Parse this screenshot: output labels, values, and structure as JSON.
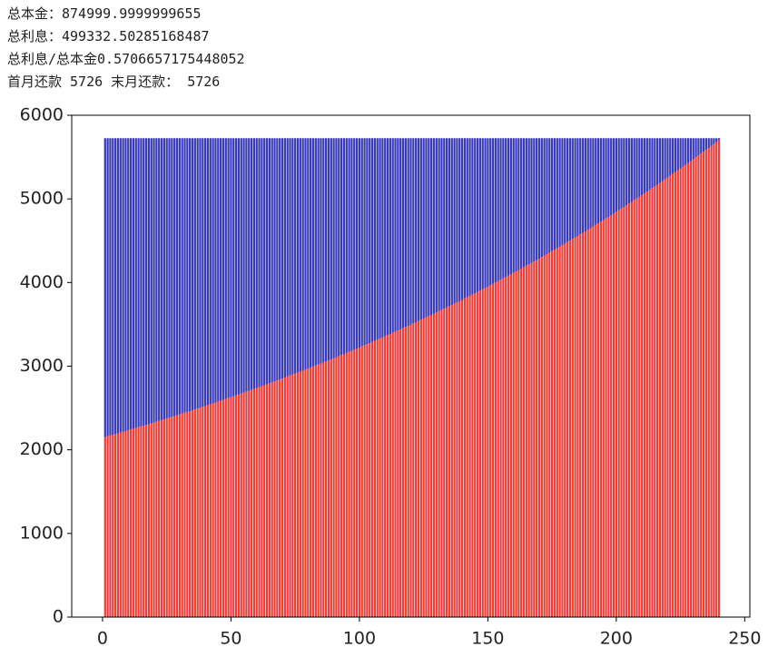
{
  "output_lines": [
    "总本金：874999.9999999655",
    "总利息：499332.50285168487",
    "总利息/总本金0.5706657175448052",
    "首月还款 5726 末月还款： 5726"
  ],
  "chart_data": {
    "type": "stacked_bar",
    "x": [
      1,
      2,
      3,
      4,
      5,
      6,
      7,
      8,
      9,
      10,
      11,
      12,
      13,
      14,
      15,
      16,
      17,
      18,
      19,
      20,
      21,
      22,
      23,
      24,
      25,
      26,
      27,
      28,
      29,
      30,
      31,
      32,
      33,
      34,
      35,
      36,
      37,
      38,
      39,
      40,
      41,
      42,
      43,
      44,
      45,
      46,
      47,
      48,
      49,
      50,
      51,
      52,
      53,
      54,
      55,
      56,
      57,
      58,
      59,
      60,
      61,
      62,
      63,
      64,
      65,
      66,
      67,
      68,
      69,
      70,
      71,
      72,
      73,
      74,
      75,
      76,
      77,
      78,
      79,
      80,
      81,
      82,
      83,
      84,
      85,
      86,
      87,
      88,
      89,
      90,
      91,
      92,
      93,
      94,
      95,
      96,
      97,
      98,
      99,
      100,
      101,
      102,
      103,
      104,
      105,
      106,
      107,
      108,
      109,
      110,
      111,
      112,
      113,
      114,
      115,
      116,
      117,
      118,
      119,
      120,
      121,
      122,
      123,
      124,
      125,
      126,
      127,
      128,
      129,
      130,
      131,
      132,
      133,
      134,
      135,
      136,
      137,
      138,
      139,
      140,
      141,
      142,
      143,
      144,
      145,
      146,
      147,
      148,
      149,
      150,
      151,
      152,
      153,
      154,
      155,
      156,
      157,
      158,
      159,
      160,
      161,
      162,
      163,
      164,
      165,
      166,
      167,
      168,
      169,
      170,
      171,
      172,
      173,
      174,
      175,
      176,
      177,
      178,
      179,
      180,
      181,
      182,
      183,
      184,
      185,
      186,
      187,
      188,
      189,
      190,
      191,
      192,
      193,
      194,
      195,
      196,
      197,
      198,
      199,
      200,
      201,
      202,
      203,
      204,
      205,
      206,
      207,
      208,
      209,
      210,
      211,
      212,
      213,
      214,
      215,
      216,
      217,
      218,
      219,
      220,
      221,
      222,
      223,
      224,
      225,
      226,
      227,
      228,
      229,
      230,
      231,
      232,
      233,
      234,
      235,
      236,
      237,
      238,
      239,
      240
    ],
    "series": [
      {
        "color": "#e8413c",
        "values": [
          2154,
          2162,
          2171,
          2180,
          2189,
          2197,
          2206,
          2215,
          2224,
          2233,
          2243,
          2252,
          2261,
          2271,
          2280,
          2289,
          2298,
          2307,
          2316,
          2326,
          2336,
          2346,
          2355,
          2365,
          2375,
          2384,
          2394,
          2403,
          2413,
          2422,
          2434,
          2444,
          2453,
          2463,
          2473,
          2483,
          2493,
          2503,
          2513,
          2523,
          2535,
          2545,
          2556,
          2566,
          2576,
          2587,
          2597,
          2607,
          2618,
          2628,
          2640,
          2651,
          2662,
          2673,
          2683,
          2694,
          2705,
          2716,
          2727,
          2737,
          2750,
          2761,
          2772,
          2784,
          2795,
          2806,
          2817,
          2829,
          2840,
          2851,
          2864,
          2876,
          2888,
          2900,
          2911,
          2923,
          2935,
          2946,
          2958,
          2970,
          2984,
          2996,
          3008,
          3020,
          3032,
          3044,
          3057,
          3069,
          3081,
          3093,
          3108,
          3120,
          3133,
          3146,
          3158,
          3171,
          3184,
          3196,
          3209,
          3222,
          3237,
          3250,
          3263,
          3276,
          3290,
          3303,
          3316,
          3329,
          3343,
          3356,
          3371,
          3385,
          3399,
          3413,
          3426,
          3440,
          3454,
          3468,
          3482,
          3495,
          3512,
          3526,
          3540,
          3555,
          3569,
          3583,
          3598,
          3612,
          3626,
          3641,
          3658,
          3673,
          3687,
          3702,
          3717,
          3732,
          3747,
          3762,
          3777,
          3792,
          3810,
          3825,
          3841,
          3856,
          3872,
          3888,
          3903,
          3919,
          3934,
          3950,
          3968,
          3984,
          4001,
          4017,
          4033,
          4049,
          4065,
          4082,
          4098,
          4114,
          4133,
          4150,
          4167,
          4184,
          4201,
          4217,
          4234,
          4251,
          4268,
          4285,
          4305,
          4323,
          4340,
          4358,
          4375,
          4393,
          4411,
          4428,
          4446,
          4463,
          4484,
          4502,
          4521,
          4539,
          4557,
          4576,
          4594,
          4612,
          4631,
          4649,
          4671,
          4690,
          4709,
          4728,
          4747,
          4766,
          4785,
          4804,
          4823,
          4842,
          4865,
          4885,
          4904,
          4924,
          4944,
          4964,
          4984,
          5004,
          5024,
          5043,
          5067,
          5088,
          5108,
          5129,
          5150,
          5170,
          5191,
          5212,
          5233,
          5253,
          5278,
          5299,
          5321,
          5342,
          5364,
          5385,
          5407,
          5428,
          5450,
          5472,
          5497,
          5520,
          5542,
          5564,
          5587,
          5609,
          5632,
          5654,
          5677,
          5703
        ]
      },
      {
        "color": "#3a3ab8",
        "values": [
          3572,
          3564,
          3555,
          3546,
          3537,
          3529,
          3520,
          3511,
          3502,
          3493,
          3483,
          3474,
          3465,
          3455,
          3446,
          3437,
          3428,
          3419,
          3410,
          3400,
          3390,
          3380,
          3371,
          3361,
          3351,
          3342,
          3332,
          3323,
          3313,
          3304,
          3292,
          3282,
          3273,
          3263,
          3253,
          3243,
          3233,
          3223,
          3213,
          3203,
          3191,
          3181,
          3170,
          3160,
          3150,
          3139,
          3129,
          3119,
          3108,
          3098,
          3086,
          3075,
          3064,
          3053,
          3043,
          3032,
          3021,
          3010,
          2999,
          2989,
          2976,
          2965,
          2954,
          2942,
          2931,
          2920,
          2909,
          2897,
          2886,
          2875,
          2862,
          2850,
          2838,
          2826,
          2815,
          2803,
          2791,
          2780,
          2768,
          2756,
          2742,
          2730,
          2718,
          2706,
          2694,
          2682,
          2669,
          2657,
          2645,
          2633,
          2618,
          2606,
          2593,
          2580,
          2568,
          2555,
          2542,
          2530,
          2517,
          2504,
          2489,
          2476,
          2463,
          2450,
          2436,
          2423,
          2410,
          2397,
          2383,
          2370,
          2355,
          2341,
          2327,
          2313,
          2300,
          2286,
          2272,
          2258,
          2244,
          2231,
          2214,
          2200,
          2186,
          2171,
          2157,
          2143,
          2128,
          2114,
          2100,
          2085,
          2068,
          2053,
          2039,
          2024,
          2009,
          1994,
          1979,
          1964,
          1949,
          1934,
          1916,
          1901,
          1885,
          1870,
          1854,
          1838,
          1823,
          1807,
          1792,
          1776,
          1758,
          1742,
          1725,
          1709,
          1693,
          1677,
          1661,
          1644,
          1628,
          1612,
          1593,
          1576,
          1559,
          1542,
          1525,
          1509,
          1492,
          1475,
          1458,
          1441,
          1421,
          1403,
          1386,
          1368,
          1351,
          1333,
          1315,
          1298,
          1280,
          1263,
          1242,
          1224,
          1205,
          1187,
          1169,
          1150,
          1132,
          1114,
          1095,
          1077,
          1055,
          1036,
          1017,
          998,
          979,
          960,
          941,
          922,
          903,
          884,
          861,
          841,
          822,
          802,
          782,
          762,
          742,
          722,
          702,
          683,
          659,
          638,
          618,
          597,
          576,
          556,
          535,
          514,
          493,
          473,
          448,
          427,
          405,
          384,
          362,
          341,
          319,
          298,
          276,
          254,
          229,
          206,
          184,
          162,
          139,
          117,
          94,
          72,
          49,
          23
        ]
      }
    ],
    "xlim": [
      -12,
      252
    ],
    "ylim": [
      0,
      6000
    ],
    "xticks": [
      0,
      50,
      100,
      150,
      200,
      250
    ],
    "yticks": [
      0,
      1000,
      2000,
      3000,
      4000,
      5000,
      6000
    ]
  }
}
